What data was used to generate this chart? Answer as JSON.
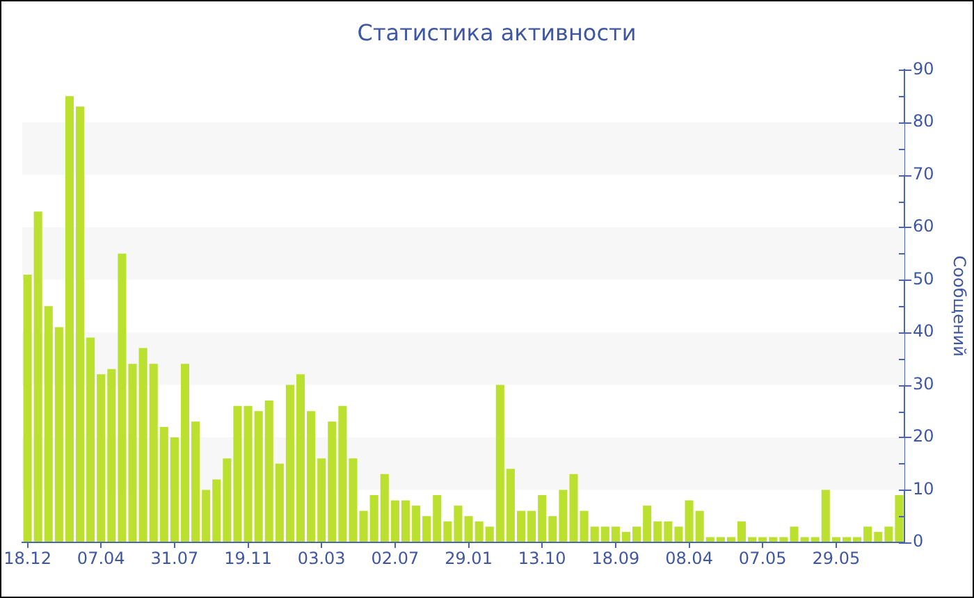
{
  "chart_data": {
    "type": "bar",
    "title": "Статистика активности",
    "ylabel": "Сообщений",
    "categories": [
      "18.12",
      null,
      null,
      null,
      null,
      null,
      null,
      "07.04",
      null,
      null,
      null,
      null,
      null,
      null,
      "31.07",
      null,
      null,
      null,
      null,
      null,
      null,
      "19.11",
      null,
      null,
      null,
      null,
      null,
      null,
      "03.03",
      null,
      null,
      null,
      null,
      null,
      null,
      "02.07",
      null,
      null,
      null,
      null,
      null,
      null,
      "29.01",
      null,
      null,
      null,
      null,
      null,
      null,
      "13.10",
      null,
      null,
      null,
      null,
      null,
      null,
      "18.09",
      null,
      null,
      null,
      null,
      null,
      null,
      "08.04",
      null,
      null,
      null,
      null,
      null,
      null,
      "07.05",
      null,
      null,
      null,
      null,
      null,
      null,
      "29.05",
      null,
      null,
      null,
      null,
      null,
      null
    ],
    "values": [
      51,
      63,
      45,
      41,
      85,
      83,
      39,
      32,
      33,
      55,
      34,
      37,
      34,
      22,
      20,
      34,
      23,
      10,
      12,
      16,
      26,
      26,
      25,
      27,
      15,
      30,
      32,
      25,
      16,
      23,
      26,
      16,
      6,
      9,
      13,
      8,
      8,
      7,
      5,
      9,
      4,
      7,
      5,
      4,
      3,
      30,
      14,
      6,
      6,
      9,
      5,
      10,
      13,
      6,
      3,
      3,
      3,
      2,
      3,
      7,
      4,
      4,
      3,
      8,
      6,
      1,
      1,
      1,
      4,
      1,
      1,
      1,
      1,
      3,
      1,
      1,
      10,
      1,
      1,
      1,
      3,
      2,
      3,
      9
    ],
    "color": "#bbe02f",
    "ylim": [
      0,
      90
    ],
    "yticks": [
      0,
      {
        "value": 5,
        "label": null
      },
      10,
      {
        "value": 15,
        "label": null
      },
      20,
      {
        "value": 25,
        "label": null
      },
      30,
      {
        "value": 35,
        "label": null
      },
      40,
      {
        "value": 45,
        "label": null
      },
      50,
      {
        "value": 55,
        "label": null
      },
      60,
      {
        "value": 65,
        "label": null
      },
      70,
      {
        "value": 75,
        "label": null
      },
      80,
      {
        "value": 85,
        "label": null
      },
      90
    ],
    "bands": [
      {
        "axis": "y",
        "from": 10,
        "to": 20,
        "color": "#f7f7f7"
      },
      {
        "axis": "y",
        "from": 30,
        "to": 40,
        "color": "#f7f7f7"
      },
      {
        "axis": "y",
        "from": 50,
        "to": 60,
        "color": "#f7f7f7"
      },
      {
        "axis": "y",
        "from": 70,
        "to": 80,
        "color": "#f7f7f7"
      }
    ],
    "grid": false,
    "legend": false
  }
}
